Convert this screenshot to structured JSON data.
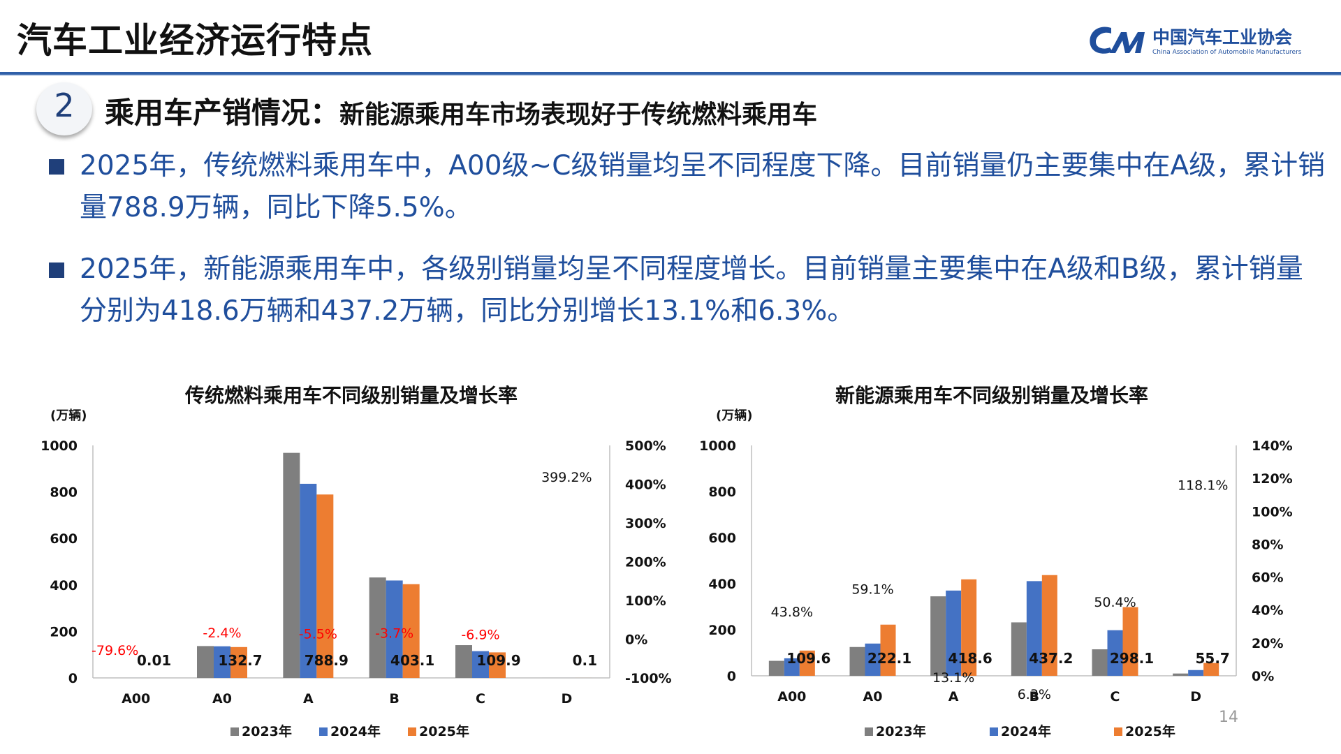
{
  "header": {
    "title": "汽车工业经济运行特点",
    "logo_cn": "中国汽车工业协会",
    "logo_en": "China Association of Automobile Manufacturers"
  },
  "section": {
    "number": "2",
    "title": "乘用车产销情况：",
    "subtitle": "新能源乘用车市场表现好于传统燃料乘用车"
  },
  "bullets": [
    "2025年，传统燃料乘用车中，A00级~C级销量均呈不同程度下降。目前销量仍主要集中在A级，累计销量788.9万辆，同比下降5.5%。",
    "2025年，新能源乘用车中，各级别销量均呈不同程度增长。目前销量主要集中在A级和B级，累计销量分别为418.6万辆和437.2万辆，同比分别增长13.1%和6.3%。"
  ],
  "page_number": "14",
  "colors": {
    "s2023": "#7f7f7f",
    "s2024": "#4472c4",
    "s2025": "#ed7d31",
    "negative": "#ff0000",
    "accent": "#1f4e9c"
  },
  "chart_data": [
    {
      "type": "bar",
      "title": "传统燃料乘用车不同级别销量及增长率",
      "ylabel": "(万辆)",
      "categories": [
        "A00",
        "A0",
        "A",
        "B",
        "C",
        "D"
      ],
      "series": [
        {
          "name": "2023年",
          "values": [
            0.05,
            137,
            968,
            432,
            141,
            0.02
          ]
        },
        {
          "name": "2024年",
          "values": [
            0.05,
            136,
            835,
            419,
            115,
            0.02
          ]
        },
        {
          "name": "2025年",
          "values": [
            0.01,
            132.7,
            788.9,
            403.1,
            109.9,
            0.1
          ]
        }
      ],
      "value_labels": [
        "0.01",
        "132.7",
        "788.9",
        "403.1",
        "109.9",
        "0.1"
      ],
      "growth_labels": [
        "-79.6%",
        "-2.4%",
        "-5.5%",
        "-3.7%",
        "-6.9%",
        "399.2%"
      ],
      "growth_values": [
        -79.6,
        -2.4,
        -5.5,
        -3.7,
        -6.9,
        399.2
      ],
      "ylim": [
        0,
        1000
      ],
      "yticks": [
        "0",
        "200",
        "400",
        "600",
        "800",
        "1000"
      ],
      "y2ticks": [
        "-100%",
        "0%",
        "100%",
        "200%",
        "300%",
        "400%",
        "500%"
      ],
      "y2lim": [
        -100,
        500
      ],
      "legend": [
        "2023年",
        "2024年",
        "2025年"
      ],
      "legend_position": "bottom"
    },
    {
      "type": "bar",
      "title": "新能源乘用车不同级别销量及增长率",
      "ylabel": "(万辆)",
      "categories": [
        "A00",
        "A0",
        "A",
        "B",
        "C",
        "D"
      ],
      "series": [
        {
          "name": "2023年",
          "values": [
            65,
            125,
            345,
            232,
            115,
            10
          ]
        },
        {
          "name": "2024年",
          "values": [
            76,
            140,
            370,
            411,
            198,
            25
          ]
        },
        {
          "name": "2025年",
          "values": [
            109.6,
            222.1,
            418.6,
            437.2,
            298.1,
            55.7
          ]
        }
      ],
      "value_labels": [
        "109.6",
        "222.1",
        "418.6",
        "437.2",
        "298.1",
        "55.7"
      ],
      "growth_labels": [
        "43.8%",
        "59.1%",
        "13.1%",
        "6.3%",
        "50.4%",
        "118.1%"
      ],
      "growth_values": [
        43.8,
        59.1,
        13.1,
        6.3,
        50.4,
        118.1
      ],
      "ylim": [
        0,
        1000
      ],
      "yticks": [
        "0",
        "200",
        "400",
        "600",
        "800",
        "1000"
      ],
      "y2ticks": [
        "0%",
        "20%",
        "40%",
        "60%",
        "80%",
        "100%",
        "120%",
        "140%"
      ],
      "y2lim": [
        0,
        140
      ],
      "legend": [
        "2023年",
        "2024年",
        "2025年"
      ],
      "legend_position": "bottom"
    }
  ]
}
